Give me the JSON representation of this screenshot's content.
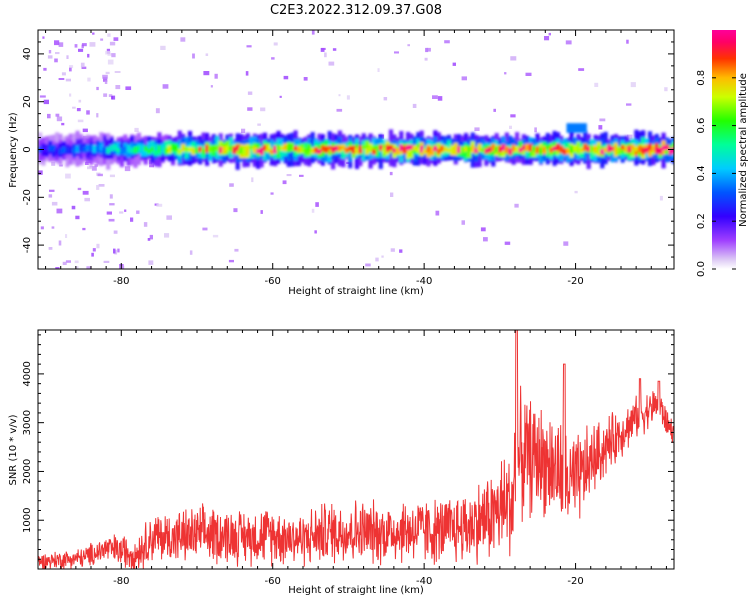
{
  "figure": {
    "title": "C2E3.2022.312.09.37.G08"
  },
  "chart_data": [
    {
      "type": "heatmap",
      "title": "C2E3.2022.312.09.37.G08",
      "xlabel": "Height of straight line (km)",
      "ylabel": "Frequency (Hz)",
      "xlim": [
        -91,
        -7
      ],
      "ylim": [
        -50,
        50
      ],
      "xticks": [
        -80,
        -60,
        -40,
        -20
      ],
      "yticks": [
        -40,
        -20,
        0,
        20,
        40
      ],
      "colorbar": {
        "label": "Normalized spectral amplitude",
        "ticks": [
          0.0,
          0.2,
          0.4,
          0.6,
          0.8
        ],
        "range": [
          0,
          1
        ],
        "colormap": "hsv-rainbow"
      },
      "description_points": [
        {
          "x": -90,
          "freq": 0,
          "amp": 0.25
        },
        {
          "x": -80,
          "freq": 0,
          "amp": 0.45
        },
        {
          "x": -70,
          "freq": 0,
          "amp": 0.75
        },
        {
          "x": -65,
          "freq": 1,
          "amp": 0.85
        },
        {
          "x": -50,
          "freq": 1,
          "amp": 0.8
        },
        {
          "x": -40,
          "freq": 1,
          "amp": 0.85
        },
        {
          "x": -28,
          "freq": 0,
          "amp": 0.8
        },
        {
          "x": -21,
          "freq": 0,
          "amp": 0.8
        },
        {
          "x": -20,
          "freq": 9,
          "amp": 0.35
        },
        {
          "x": -10,
          "freq": 0,
          "amp": 0.95
        }
      ],
      "main_band_hz": [
        -3,
        3
      ]
    },
    {
      "type": "line",
      "xlabel": "Height of straight line (km)",
      "ylabel": "SNR (10 * v/v)",
      "xlim": [
        -91,
        -7
      ],
      "ylim": [
        0,
        4900
      ],
      "xticks": [
        -80,
        -60,
        -40,
        -20
      ],
      "yticks": [
        1000,
        2000,
        3000,
        4000
      ],
      "color": "#ee3333",
      "envelope": {
        "x": [
          -91,
          -85,
          -82,
          -78,
          -76,
          -72,
          -68,
          -64,
          -60,
          -56,
          -53,
          -50,
          -46,
          -42,
          -38,
          -34,
          -31,
          -28.3,
          -28,
          -27,
          -25,
          -23,
          -21,
          -20,
          -18,
          -16,
          -14,
          -12,
          -10,
          -9,
          -8,
          -7
        ],
        "mean": [
          150,
          230,
          420,
          320,
          650,
          660,
          720,
          660,
          700,
          620,
          750,
          780,
          740,
          800,
          760,
          900,
          1100,
          1400,
          2100,
          2300,
          2300,
          2100,
          1800,
          1700,
          2200,
          2500,
          2800,
          3100,
          3300,
          3400,
          3000,
          2800
        ],
        "amp": [
          200,
          250,
          350,
          450,
          600,
          650,
          700,
          650,
          700,
          650,
          750,
          800,
          750,
          800,
          800,
          900,
          1100,
          1500,
          1600,
          1500,
          1300,
          1300,
          1300,
          1200,
          900,
          700,
          600,
          500,
          450,
          400,
          350,
          300
        ]
      },
      "peaks": [
        {
          "x": -27.8,
          "y": 4900
        },
        {
          "x": -21.5,
          "y": 4200
        },
        {
          "x": -11.5,
          "y": 3900
        },
        {
          "x": -9,
          "y": 3850
        }
      ]
    }
  ]
}
